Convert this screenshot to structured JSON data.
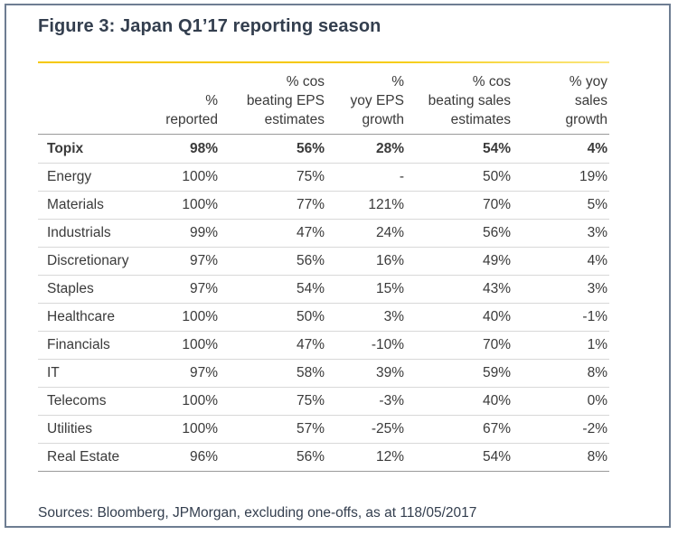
{
  "title": "Figure 3:  Japan Q1’17 reporting season",
  "columns": [
    "",
    "%\nreported",
    "% cos\nbeating EPS\nestimates",
    "%\nyoy EPS\ngrowth",
    "% cos\nbeating sales\nestimates",
    "% yoy\nsales\ngrowth"
  ],
  "rows": [
    {
      "name": "Topix",
      "reported": "98%",
      "beat_eps": "56%",
      "eps_growth": "28%",
      "beat_sales": "54%",
      "sales_growth": "4%"
    },
    {
      "name": "Energy",
      "reported": "100%",
      "beat_eps": "75%",
      "eps_growth": "-",
      "beat_sales": "50%",
      "sales_growth": "19%"
    },
    {
      "name": "Materials",
      "reported": "100%",
      "beat_eps": "77%",
      "eps_growth": "121%",
      "beat_sales": "70%",
      "sales_growth": "5%"
    },
    {
      "name": "Industrials",
      "reported": "99%",
      "beat_eps": "47%",
      "eps_growth": "24%",
      "beat_sales": "56%",
      "sales_growth": "3%"
    },
    {
      "name": "Discretionary",
      "reported": "97%",
      "beat_eps": "56%",
      "eps_growth": "16%",
      "beat_sales": "49%",
      "sales_growth": "4%"
    },
    {
      "name": "Staples",
      "reported": "97%",
      "beat_eps": "54%",
      "eps_growth": "15%",
      "beat_sales": "43%",
      "sales_growth": "3%"
    },
    {
      "name": "Healthcare",
      "reported": "100%",
      "beat_eps": "50%",
      "eps_growth": "3%",
      "beat_sales": "40%",
      "sales_growth": "-1%"
    },
    {
      "name": "Financials",
      "reported": "100%",
      "beat_eps": "47%",
      "eps_growth": "-10%",
      "beat_sales": "70%",
      "sales_growth": "1%"
    },
    {
      "name": "IT",
      "reported": "97%",
      "beat_eps": "58%",
      "eps_growth": "39%",
      "beat_sales": "59%",
      "sales_growth": "8%"
    },
    {
      "name": "Telecoms",
      "reported": "100%",
      "beat_eps": "75%",
      "eps_growth": "-3%",
      "beat_sales": "40%",
      "sales_growth": "0%"
    },
    {
      "name": "Utilities",
      "reported": "100%",
      "beat_eps": "57%",
      "eps_growth": "-25%",
      "beat_sales": "67%",
      "sales_growth": "-2%"
    },
    {
      "name": "Real Estate",
      "reported": "96%",
      "beat_eps": "56%",
      "eps_growth": "12%",
      "beat_sales": "54%",
      "sales_growth": "8%"
    }
  ],
  "footer": "Sources: Bloomberg, JPMorgan, excluding one-offs, as at 118/05/2017",
  "colors": {
    "accent_rule": "#f5c800",
    "title_text": "#333e4e",
    "frame_border": "#6e7d92"
  }
}
